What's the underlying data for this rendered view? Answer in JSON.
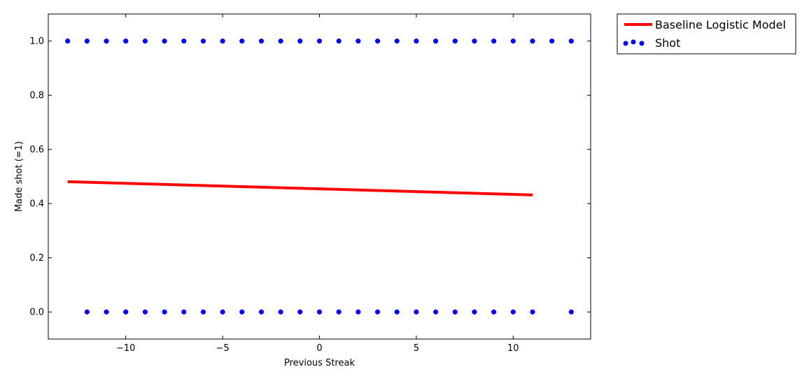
{
  "chart_data": {
    "type": "scatter",
    "title": "",
    "xlabel": "Previous Streak",
    "ylabel": "Made shot (=1)",
    "xlim": [
      -14,
      14
    ],
    "ylim": [
      -0.1,
      1.1
    ],
    "xticks": [
      -10,
      -5,
      0,
      5,
      10
    ],
    "yticks": [
      0.0,
      0.2,
      0.4,
      0.6,
      0.8,
      1.0
    ],
    "xtick_labels": [
      "−10",
      "−5",
      "0",
      "5",
      "10"
    ],
    "ytick_labels": [
      "0.0",
      "0.2",
      "0.4",
      "0.6",
      "0.8",
      "1.0"
    ],
    "grid": false,
    "legend_position": "outside-top-right",
    "series": [
      {
        "name": "Baseline Logistic Model",
        "kind": "line",
        "color": "#ff0000",
        "x": [
          -13,
          11
        ],
        "y": [
          0.481,
          0.432
        ]
      },
      {
        "name": "Shot",
        "kind": "scatter",
        "color": "#0000ff",
        "points": [
          [
            -13,
            1
          ],
          [
            -12,
            1
          ],
          [
            -11,
            1
          ],
          [
            -10,
            1
          ],
          [
            -9,
            1
          ],
          [
            -8,
            1
          ],
          [
            -7,
            1
          ],
          [
            -6,
            1
          ],
          [
            -5,
            1
          ],
          [
            -4,
            1
          ],
          [
            -3,
            1
          ],
          [
            -2,
            1
          ],
          [
            -1,
            1
          ],
          [
            0,
            1
          ],
          [
            1,
            1
          ],
          [
            2,
            1
          ],
          [
            3,
            1
          ],
          [
            4,
            1
          ],
          [
            5,
            1
          ],
          [
            6,
            1
          ],
          [
            7,
            1
          ],
          [
            8,
            1
          ],
          [
            9,
            1
          ],
          [
            10,
            1
          ],
          [
            11,
            1
          ],
          [
            12,
            1
          ],
          [
            13,
            1
          ],
          [
            -12,
            0
          ],
          [
            -11,
            0
          ],
          [
            -10,
            0
          ],
          [
            -9,
            0
          ],
          [
            -8,
            0
          ],
          [
            -7,
            0
          ],
          [
            -6,
            0
          ],
          [
            -5,
            0
          ],
          [
            -4,
            0
          ],
          [
            -3,
            0
          ],
          [
            -2,
            0
          ],
          [
            -1,
            0
          ],
          [
            0,
            0
          ],
          [
            1,
            0
          ],
          [
            2,
            0
          ],
          [
            3,
            0
          ],
          [
            4,
            0
          ],
          [
            5,
            0
          ],
          [
            6,
            0
          ],
          [
            7,
            0
          ],
          [
            8,
            0
          ],
          [
            9,
            0
          ],
          [
            10,
            0
          ],
          [
            11,
            0
          ],
          [
            13,
            0
          ]
        ]
      }
    ]
  }
}
